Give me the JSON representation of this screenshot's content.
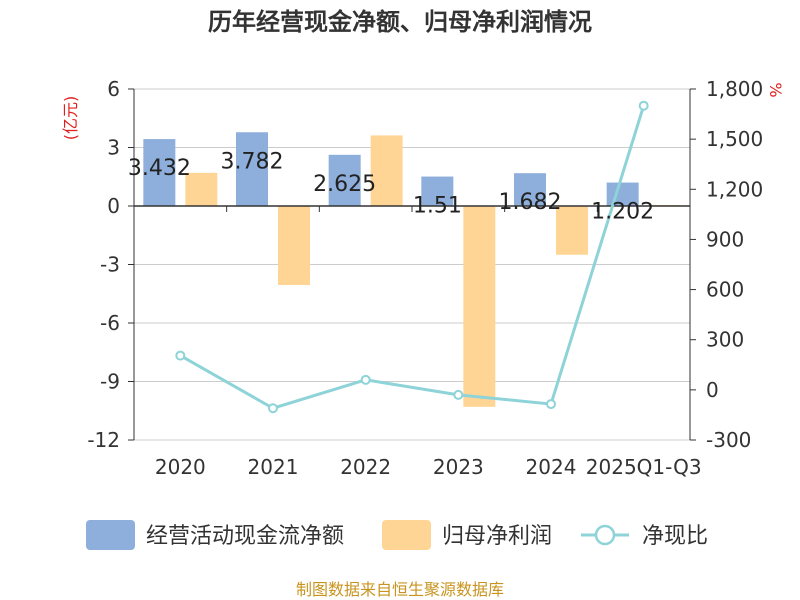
{
  "chart_data": {
    "type": "bar",
    "title": "历年经营现金净额、归母净利润情况",
    "categories": [
      "2020",
      "2021",
      "2022",
      "2023",
      "2024",
      "2025Q1-Q3"
    ],
    "left_axis": {
      "unit": "(亿元)",
      "ticks": [
        "6",
        "3",
        "0",
        "-3",
        "-6",
        "-9",
        "-12"
      ],
      "range": [
        -12,
        6
      ]
    },
    "right_axis": {
      "unit": "%",
      "ticks": [
        "1,800",
        "1,500",
        "1,200",
        "900",
        "600",
        "300",
        "0",
        "-300"
      ],
      "range": [
        -300,
        1800
      ]
    },
    "series": [
      {
        "name": "经营活动现金流净额",
        "type": "bar",
        "axis": "left",
        "color": "#8eaedb",
        "values": [
          3.432,
          3.782,
          2.625,
          1.51,
          1.682,
          1.202
        ],
        "labels": [
          "3.432",
          "3.782",
          "2.625",
          "1.51",
          "1.682",
          "1.202"
        ]
      },
      {
        "name": "归母净利润",
        "type": "bar",
        "axis": "left",
        "color": "#ffd596",
        "values": [
          1.7,
          -4.05,
          3.62,
          -10.3,
          -2.5,
          0.05
        ]
      },
      {
        "name": "净现比",
        "type": "line",
        "axis": "right",
        "color": "#8dd3d8",
        "values": [
          205,
          -110,
          60,
          -30,
          -85,
          1700
        ]
      }
    ],
    "source": "制图数据来自恒生聚源数据库"
  }
}
